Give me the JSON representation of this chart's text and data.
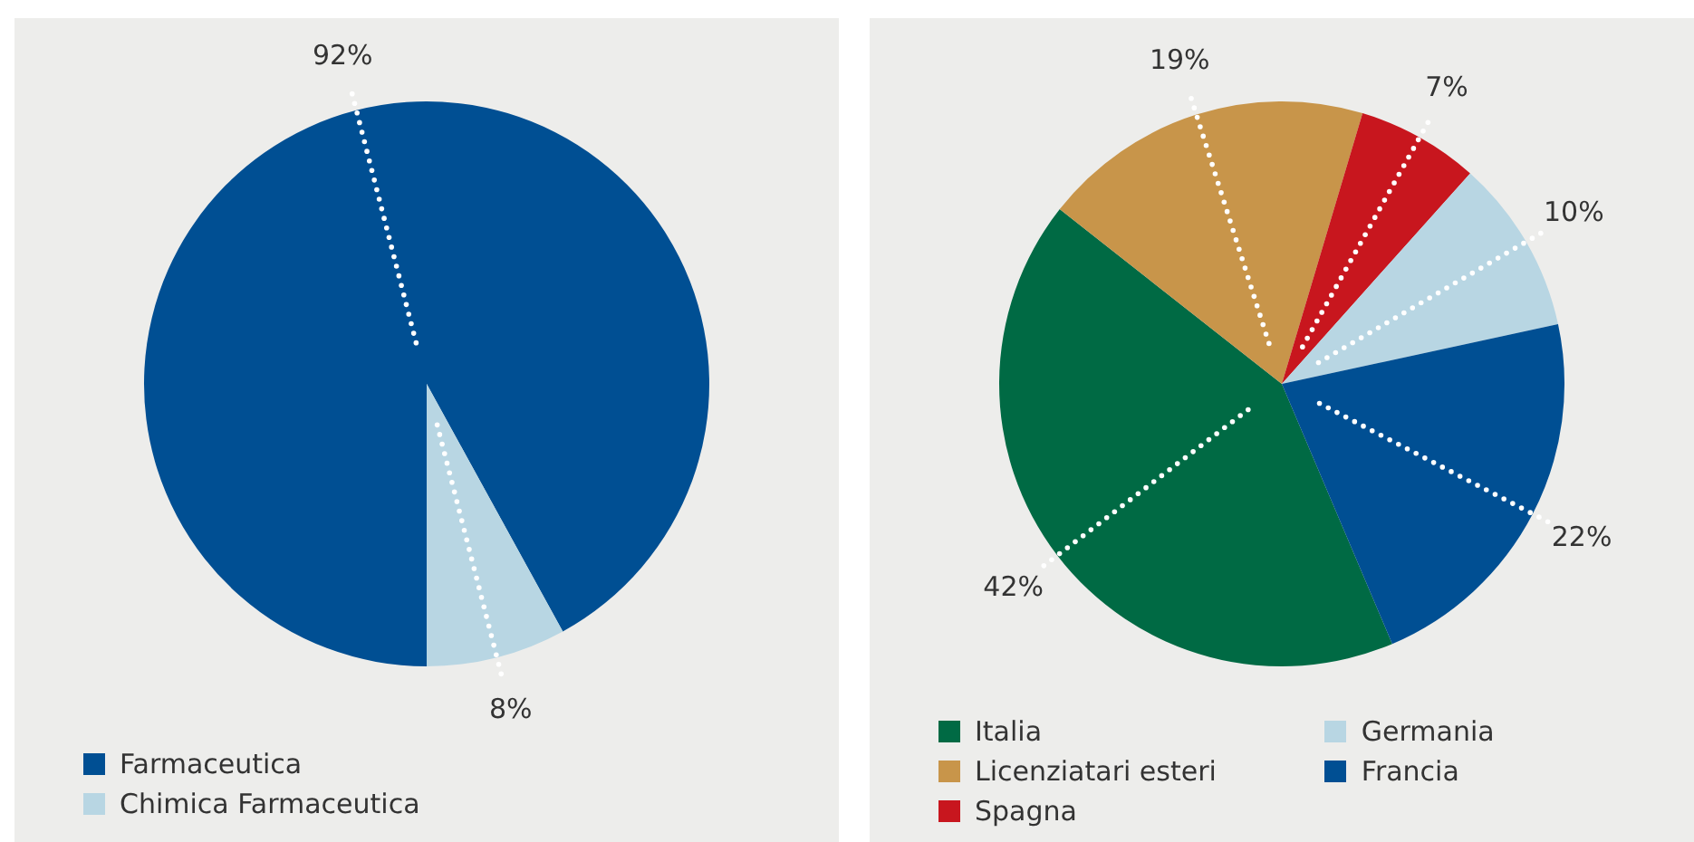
{
  "chart_data": [
    {
      "type": "pie",
      "categories": [
        "Farmaceutica",
        "Chimica Farmaceutica"
      ],
      "values": [
        92,
        8
      ],
      "colors": [
        "#004f93",
        "#b8d6e3"
      ],
      "value_labels": [
        "92%",
        "8%"
      ],
      "legend": "bottom"
    },
    {
      "type": "pie",
      "categories": [
        "Italia",
        "Licenziatari esteri",
        "Spagna",
        "Germania",
        "Francia"
      ],
      "values": [
        42,
        19,
        7,
        10,
        22
      ],
      "colors": [
        "#006a44",
        "#c8954a",
        "#c8161e",
        "#b8d6e3",
        "#004f93"
      ],
      "value_labels": [
        "42%",
        "19%",
        "7%",
        "10%",
        "22%"
      ],
      "legend": "bottom"
    }
  ]
}
